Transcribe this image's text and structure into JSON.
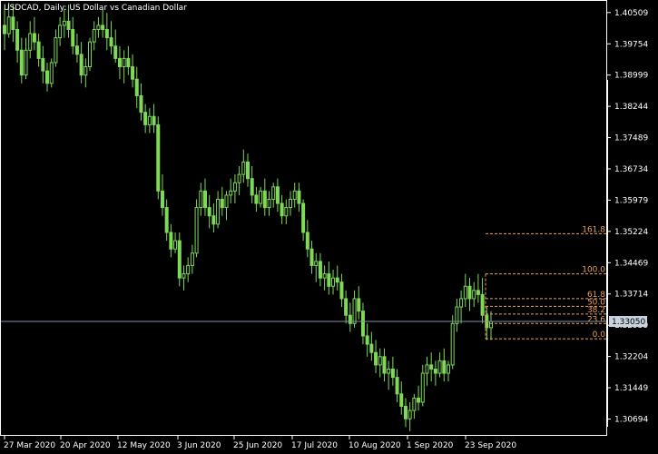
{
  "chart_data": {
    "type": "candlestick",
    "title": "USDCAD, Daily:  US Dollar vs Canadian Dollar",
    "ylim": [
      1.3031,
      1.4079
    ],
    "y_ticks": [
      "1.40509",
      "1.39754",
      "1.38999",
      "1.38244",
      "1.37489",
      "1.36734",
      "1.35979",
      "1.35224",
      "1.34469",
      "1.33714",
      "1.32959",
      "1.32204",
      "1.31449",
      "1.30694"
    ],
    "x_ticks": [
      "27 Mar 2020",
      "20 Apr 2020",
      "12 May 2020",
      "3 Jun 2020",
      "25 Jun 2020",
      "17 Jul 2020",
      "10 Aug 2020",
      "1 Sep 2020",
      "23 Sep 2020"
    ],
    "current_price": "1.33050",
    "fibonacci": {
      "high": 1.342,
      "low": 1.3263,
      "levels": [
        {
          "label": "161.8",
          "value": 1.618
        },
        {
          "label": "100.0",
          "value": 1.0
        },
        {
          "label": "61.8",
          "value": 0.618
        },
        {
          "label": "50.0",
          "value": 0.5
        },
        {
          "label": "38.2",
          "value": 0.382
        },
        {
          "label": "23.6",
          "value": 0.236
        },
        {
          "label": "0.0",
          "value": 0.0
        }
      ]
    },
    "ohlc": [
      [
        1.402,
        1.406,
        1.396,
        1.4
      ],
      [
        1.4,
        1.4075,
        1.399,
        1.404
      ],
      [
        1.404,
        1.407,
        1.398,
        1.401
      ],
      [
        1.401,
        1.403,
        1.393,
        1.396
      ],
      [
        1.396,
        1.399,
        1.388,
        1.39
      ],
      [
        1.39,
        1.399,
        1.389,
        1.396
      ],
      [
        1.396,
        1.403,
        1.394,
        1.4
      ],
      [
        1.4,
        1.404,
        1.396,
        1.398
      ],
      [
        1.398,
        1.4,
        1.392,
        1.394
      ],
      [
        1.394,
        1.397,
        1.388,
        1.391
      ],
      [
        1.391,
        1.393,
        1.386,
        1.388
      ],
      [
        1.388,
        1.394,
        1.387,
        1.393
      ],
      [
        1.393,
        1.401,
        1.392,
        1.399
      ],
      [
        1.399,
        1.404,
        1.397,
        1.402
      ],
      [
        1.402,
        1.406,
        1.399,
        1.403
      ],
      [
        1.403,
        1.407,
        1.399,
        1.401
      ],
      [
        1.401,
        1.404,
        1.395,
        1.397
      ],
      [
        1.397,
        1.4,
        1.393,
        1.395
      ],
      [
        1.395,
        1.398,
        1.388,
        1.39
      ],
      [
        1.39,
        1.394,
        1.387,
        1.392
      ],
      [
        1.392,
        1.399,
        1.391,
        1.398
      ],
      [
        1.398,
        1.403,
        1.396,
        1.401
      ],
      [
        1.401,
        1.404,
        1.399,
        1.402
      ],
      [
        1.402,
        1.406,
        1.399,
        1.401
      ],
      [
        1.401,
        1.405,
        1.396,
        1.399
      ],
      [
        1.399,
        1.403,
        1.395,
        1.397
      ],
      [
        1.397,
        1.401,
        1.393,
        1.394
      ],
      [
        1.394,
        1.397,
        1.389,
        1.392
      ],
      [
        1.392,
        1.396,
        1.388,
        1.394
      ],
      [
        1.394,
        1.397,
        1.39,
        1.392
      ],
      [
        1.392,
        1.395,
        1.387,
        1.389
      ],
      [
        1.389,
        1.392,
        1.382,
        1.385
      ],
      [
        1.385,
        1.388,
        1.379,
        1.381
      ],
      [
        1.381,
        1.383,
        1.376,
        1.378
      ],
      [
        1.378,
        1.382,
        1.376,
        1.38
      ],
      [
        1.38,
        1.383,
        1.376,
        1.378
      ],
      [
        1.378,
        1.38,
        1.36,
        1.362
      ],
      [
        1.362,
        1.366,
        1.356,
        1.358
      ],
      [
        1.358,
        1.36,
        1.35,
        1.352
      ],
      [
        1.352,
        1.354,
        1.346,
        1.348
      ],
      [
        1.348,
        1.352,
        1.347,
        1.35
      ],
      [
        1.35,
        1.352,
        1.339,
        1.341
      ],
      [
        1.341,
        1.344,
        1.338,
        1.342
      ],
      [
        1.342,
        1.346,
        1.34,
        1.344
      ],
      [
        1.344,
        1.349,
        1.342,
        1.347
      ],
      [
        1.347,
        1.36,
        1.346,
        1.358
      ],
      [
        1.358,
        1.364,
        1.356,
        1.362
      ],
      [
        1.362,
        1.365,
        1.356,
        1.358
      ],
      [
        1.358,
        1.361,
        1.353,
        1.356
      ],
      [
        1.356,
        1.359,
        1.352,
        1.354
      ],
      [
        1.354,
        1.362,
        1.353,
        1.36
      ],
      [
        1.36,
        1.363,
        1.356,
        1.358
      ],
      [
        1.358,
        1.362,
        1.355,
        1.361
      ],
      [
        1.361,
        1.365,
        1.359,
        1.362
      ],
      [
        1.362,
        1.366,
        1.359,
        1.364
      ],
      [
        1.364,
        1.368,
        1.361,
        1.366
      ],
      [
        1.366,
        1.372,
        1.364,
        1.369
      ],
      [
        1.369,
        1.371,
        1.363,
        1.365
      ],
      [
        1.365,
        1.368,
        1.359,
        1.361
      ],
      [
        1.361,
        1.363,
        1.357,
        1.359
      ],
      [
        1.359,
        1.363,
        1.358,
        1.362
      ],
      [
        1.362,
        1.365,
        1.356,
        1.358
      ],
      [
        1.358,
        1.362,
        1.356,
        1.36
      ],
      [
        1.36,
        1.364,
        1.358,
        1.363
      ],
      [
        1.363,
        1.365,
        1.357,
        1.359
      ],
      [
        1.359,
        1.361,
        1.354,
        1.356
      ],
      [
        1.356,
        1.36,
        1.354,
        1.358
      ],
      [
        1.358,
        1.362,
        1.356,
        1.36
      ],
      [
        1.36,
        1.364,
        1.358,
        1.362
      ],
      [
        1.362,
        1.364,
        1.357,
        1.359
      ],
      [
        1.359,
        1.36,
        1.35,
        1.352
      ],
      [
        1.352,
        1.355,
        1.346,
        1.348
      ],
      [
        1.348,
        1.35,
        1.342,
        1.344
      ],
      [
        1.344,
        1.347,
        1.34,
        1.345
      ],
      [
        1.345,
        1.347,
        1.339,
        1.341
      ],
      [
        1.341,
        1.344,
        1.338,
        1.342
      ],
      [
        1.342,
        1.345,
        1.337,
        1.339
      ],
      [
        1.339,
        1.343,
        1.337,
        1.341
      ],
      [
        1.341,
        1.344,
        1.338,
        1.34
      ],
      [
        1.34,
        1.342,
        1.334,
        1.336
      ],
      [
        1.336,
        1.338,
        1.33,
        1.332
      ],
      [
        1.332,
        1.335,
        1.328,
        1.33
      ],
      [
        1.33,
        1.338,
        1.329,
        1.336
      ],
      [
        1.336,
        1.339,
        1.331,
        1.333
      ],
      [
        1.333,
        1.335,
        1.325,
        1.327
      ],
      [
        1.327,
        1.33,
        1.322,
        1.325
      ],
      [
        1.325,
        1.328,
        1.321,
        1.323
      ],
      [
        1.323,
        1.326,
        1.318,
        1.32
      ],
      [
        1.32,
        1.324,
        1.317,
        1.322
      ],
      [
        1.322,
        1.324,
        1.316,
        1.318
      ],
      [
        1.318,
        1.321,
        1.314,
        1.319
      ],
      [
        1.319,
        1.322,
        1.315,
        1.317
      ],
      [
        1.317,
        1.319,
        1.311,
        1.313
      ],
      [
        1.313,
        1.316,
        1.308,
        1.31
      ],
      [
        1.31,
        1.312,
        1.305,
        1.307
      ],
      [
        1.307,
        1.311,
        1.304,
        1.309
      ],
      [
        1.309,
        1.313,
        1.307,
        1.312
      ],
      [
        1.312,
        1.315,
        1.309,
        1.311
      ],
      [
        1.311,
        1.32,
        1.31,
        1.318
      ],
      [
        1.318,
        1.322,
        1.315,
        1.32
      ],
      [
        1.32,
        1.323,
        1.316,
        1.319
      ],
      [
        1.319,
        1.321,
        1.315,
        1.318
      ],
      [
        1.318,
        1.323,
        1.317,
        1.321
      ],
      [
        1.321,
        1.324,
        1.316,
        1.318
      ],
      [
        1.318,
        1.321,
        1.316,
        1.32
      ],
      [
        1.32,
        1.332,
        1.319,
        1.33
      ],
      [
        1.33,
        1.336,
        1.328,
        1.334
      ],
      [
        1.334,
        1.338,
        1.33,
        1.336
      ],
      [
        1.336,
        1.342,
        1.334,
        1.339
      ],
      [
        1.339,
        1.341,
        1.333,
        1.336
      ],
      [
        1.336,
        1.34,
        1.334,
        1.338
      ],
      [
        1.338,
        1.342,
        1.335,
        1.337
      ],
      [
        1.337,
        1.341,
        1.33,
        1.332
      ],
      [
        1.332,
        1.334,
        1.326,
        1.329
      ],
      [
        1.329,
        1.333,
        1.326,
        1.3305
      ]
    ]
  },
  "colors": {
    "background": "#000000",
    "candle": "#7ed957",
    "axis": "#ffffff",
    "fib": "#e8a25a",
    "price_line": "#7f92a6",
    "price_box": "#c9d3dd"
  }
}
